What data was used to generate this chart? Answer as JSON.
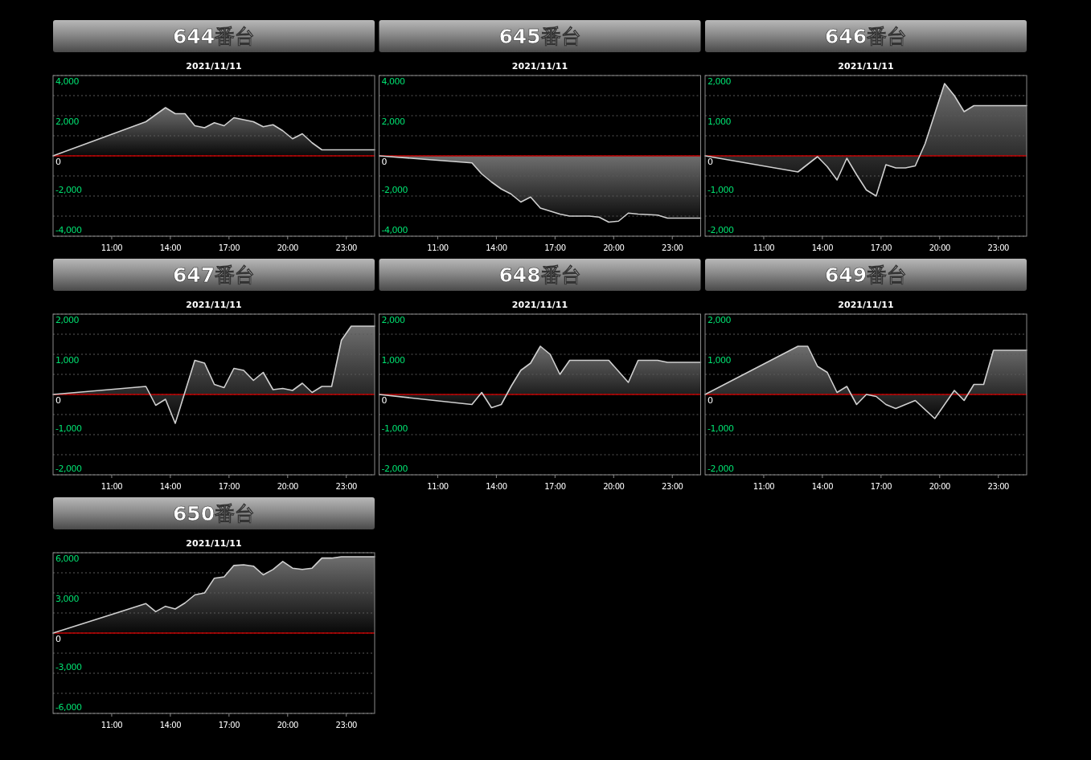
{
  "chart_data": [
    {
      "type": "area",
      "title": "644番台",
      "subtitle": "2021/11/11",
      "color": "#d0d0d0",
      "grid": "y",
      "xlim": [
        8,
        24.45
      ],
      "ylim": [
        -4000,
        4000
      ],
      "xticks": [
        {
          "value": 11,
          "label": "11:00"
        },
        {
          "value": 14,
          "label": "14:00"
        },
        {
          "value": 17,
          "label": "17:00"
        },
        {
          "value": 20,
          "label": "20:00"
        },
        {
          "value": 23,
          "label": "23:00"
        }
      ],
      "yticks": [
        {
          "value": -4000,
          "label": "-4,000"
        },
        {
          "value": -3000,
          "label": null
        },
        {
          "value": -2000,
          "label": "-2,000"
        },
        {
          "value": -1000,
          "label": null
        },
        {
          "value": 0,
          "label": "0"
        },
        {
          "value": 1000,
          "label": null
        },
        {
          "value": 2000,
          "label": "2,000"
        },
        {
          "value": 3000,
          "label": null
        },
        {
          "value": 4000,
          "label": "4,000"
        }
      ],
      "ref_lines": [
        {
          "axis": "y",
          "value": 0,
          "color": "#c00000"
        }
      ],
      "x": [
        8,
        12.75,
        13.75,
        14.25,
        14.75,
        15.25,
        15.75,
        16.25,
        16.75,
        17.25,
        17.75,
        18.25,
        18.75,
        19.25,
        19.75,
        20.25,
        20.75,
        21.25,
        21.75,
        24.45
      ],
      "values": [
        0,
        1700,
        2400,
        2100,
        2100,
        1500,
        1400,
        1650,
        1500,
        1900,
        1800,
        1700,
        1450,
        1550,
        1250,
        850,
        1100,
        650,
        300,
        300
      ]
    },
    {
      "type": "area",
      "title": "645番台",
      "subtitle": "2021/11/11",
      "color": "#d0d0d0",
      "grid": "y",
      "xlim": [
        8,
        24.45
      ],
      "ylim": [
        -4000,
        4000
      ],
      "xticks": [
        {
          "value": 11,
          "label": "11:00"
        },
        {
          "value": 14,
          "label": "14:00"
        },
        {
          "value": 17,
          "label": "17:00"
        },
        {
          "value": 20,
          "label": "20:00"
        },
        {
          "value": 23,
          "label": "23:00"
        }
      ],
      "yticks": [
        {
          "value": -4000,
          "label": "-4,000"
        },
        {
          "value": -3000,
          "label": null
        },
        {
          "value": -2000,
          "label": "-2,000"
        },
        {
          "value": -1000,
          "label": null
        },
        {
          "value": 0,
          "label": "0"
        },
        {
          "value": 1000,
          "label": null
        },
        {
          "value": 2000,
          "label": "2,000"
        },
        {
          "value": 3000,
          "label": null
        },
        {
          "value": 4000,
          "label": "4,000"
        }
      ],
      "ref_lines": [
        {
          "axis": "y",
          "value": 0,
          "color": "#c00000"
        }
      ],
      "x": [
        8,
        12.75,
        13.25,
        13.75,
        14.25,
        14.75,
        15.25,
        15.75,
        16.25,
        16.75,
        17.25,
        17.75,
        18.75,
        19.25,
        19.75,
        20.25,
        20.75,
        21.25,
        22.25,
        22.75,
        24.45
      ],
      "values": [
        0,
        -350,
        -900,
        -1300,
        -1650,
        -1900,
        -2300,
        -2050,
        -2600,
        -2750,
        -2900,
        -3000,
        -3000,
        -3050,
        -3300,
        -3250,
        -2850,
        -2900,
        -2950,
        -3100,
        -3100
      ]
    },
    {
      "type": "area",
      "title": "646番台",
      "subtitle": "2021/11/11",
      "color": "#d0d0d0",
      "grid": "y",
      "xlim": [
        8,
        24.45
      ],
      "ylim": [
        -2000,
        2000
      ],
      "xticks": [
        {
          "value": 11,
          "label": "11:00"
        },
        {
          "value": 14,
          "label": "14:00"
        },
        {
          "value": 17,
          "label": "17:00"
        },
        {
          "value": 20,
          "label": "20:00"
        },
        {
          "value": 23,
          "label": "23:00"
        }
      ],
      "yticks": [
        {
          "value": -2000,
          "label": "-2,000"
        },
        {
          "value": -1500,
          "label": null
        },
        {
          "value": -1000,
          "label": "-1,000"
        },
        {
          "value": -500,
          "label": null
        },
        {
          "value": 0,
          "label": "0"
        },
        {
          "value": 500,
          "label": null
        },
        {
          "value": 1000,
          "label": "1,000"
        },
        {
          "value": 1500,
          "label": null
        },
        {
          "value": 2000,
          "label": "2,000"
        }
      ],
      "ref_lines": [
        {
          "axis": "y",
          "value": 0,
          "color": "#c00000"
        }
      ],
      "x": [
        8,
        12.75,
        13.75,
        14.25,
        14.75,
        15.25,
        15.75,
        16.25,
        16.75,
        17.25,
        17.75,
        18.25,
        18.75,
        19.25,
        19.75,
        20.25,
        20.75,
        21.25,
        21.75,
        24.45
      ],
      "values": [
        0,
        -400,
        -20,
        -270,
        -600,
        -60,
        -470,
        -850,
        -1000,
        -220,
        -300,
        -300,
        -250,
        300,
        1050,
        1800,
        1500,
        1100,
        1250,
        1250
      ]
    },
    {
      "type": "area",
      "title": "647番台",
      "subtitle": "2021/11/11",
      "color": "#d0d0d0",
      "grid": "y",
      "xlim": [
        8,
        24.45
      ],
      "ylim": [
        -2000,
        2000
      ],
      "xticks": [
        {
          "value": 11,
          "label": "11:00"
        },
        {
          "value": 14,
          "label": "14:00"
        },
        {
          "value": 17,
          "label": "17:00"
        },
        {
          "value": 20,
          "label": "20:00"
        },
        {
          "value": 23,
          "label": "23:00"
        }
      ],
      "yticks": [
        {
          "value": -2000,
          "label": "-2,000"
        },
        {
          "value": -1500,
          "label": null
        },
        {
          "value": -1000,
          "label": "-1,000"
        },
        {
          "value": -500,
          "label": null
        },
        {
          "value": 0,
          "label": "0"
        },
        {
          "value": 500,
          "label": null
        },
        {
          "value": 1000,
          "label": "1,000"
        },
        {
          "value": 1500,
          "label": null
        },
        {
          "value": 2000,
          "label": "2,000"
        }
      ],
      "ref_lines": [
        {
          "axis": "y",
          "value": 0,
          "color": "#c00000"
        }
      ],
      "x": [
        8,
        12.75,
        13.25,
        13.75,
        14.25,
        15.25,
        15.75,
        16.25,
        16.75,
        17.25,
        17.75,
        18.25,
        18.75,
        19.25,
        19.75,
        20.25,
        20.75,
        21.25,
        21.75,
        22.25,
        22.75,
        23.25,
        24.45
      ],
      "values": [
        0,
        200,
        -270,
        -120,
        -720,
        850,
        780,
        250,
        170,
        650,
        600,
        350,
        550,
        120,
        150,
        100,
        280,
        50,
        200,
        200,
        1350,
        1700,
        1700
      ]
    },
    {
      "type": "area",
      "title": "648番台",
      "subtitle": "2021/11/11",
      "color": "#d0d0d0",
      "grid": "y",
      "xlim": [
        8,
        24.45
      ],
      "ylim": [
        -2000,
        2000
      ],
      "xticks": [
        {
          "value": 11,
          "label": "11:00"
        },
        {
          "value": 14,
          "label": "14:00"
        },
        {
          "value": 17,
          "label": "17:00"
        },
        {
          "value": 20,
          "label": "20:00"
        },
        {
          "value": 23,
          "label": "23:00"
        }
      ],
      "yticks": [
        {
          "value": -2000,
          "label": "-2,000"
        },
        {
          "value": -1500,
          "label": null
        },
        {
          "value": -1000,
          "label": "-1,000"
        },
        {
          "value": -500,
          "label": null
        },
        {
          "value": 0,
          "label": "0"
        },
        {
          "value": 500,
          "label": null
        },
        {
          "value": 1000,
          "label": "1,000"
        },
        {
          "value": 1500,
          "label": null
        },
        {
          "value": 2000,
          "label": "2,000"
        }
      ],
      "ref_lines": [
        {
          "axis": "y",
          "value": 0,
          "color": "#c00000"
        }
      ],
      "x": [
        8,
        12.75,
        13.25,
        13.75,
        14.25,
        14.75,
        15.25,
        15.75,
        16.25,
        16.75,
        17.25,
        17.75,
        19.75,
        20.75,
        21.25,
        22.25,
        22.75,
        24.45
      ],
      "values": [
        0,
        -250,
        50,
        -330,
        -250,
        200,
        600,
        780,
        1200,
        1000,
        500,
        850,
        850,
        300,
        850,
        850,
        800,
        800
      ]
    },
    {
      "type": "area",
      "title": "649番台",
      "subtitle": "2021/11/11",
      "color": "#d0d0d0",
      "grid": "y",
      "xlim": [
        8,
        24.45
      ],
      "ylim": [
        -2000,
        2000
      ],
      "xticks": [
        {
          "value": 11,
          "label": "11:00"
        },
        {
          "value": 14,
          "label": "14:00"
        },
        {
          "value": 17,
          "label": "17:00"
        },
        {
          "value": 20,
          "label": "20:00"
        },
        {
          "value": 23,
          "label": "23:00"
        }
      ],
      "yticks": [
        {
          "value": -2000,
          "label": "-2,000"
        },
        {
          "value": -1500,
          "label": null
        },
        {
          "value": -1000,
          "label": "-1,000"
        },
        {
          "value": -500,
          "label": null
        },
        {
          "value": 0,
          "label": "0"
        },
        {
          "value": 500,
          "label": null
        },
        {
          "value": 1000,
          "label": "1,000"
        },
        {
          "value": 1500,
          "label": null
        },
        {
          "value": 2000,
          "label": "2,000"
        }
      ],
      "ref_lines": [
        {
          "axis": "y",
          "value": 0,
          "color": "#c00000"
        }
      ],
      "x": [
        8,
        12.75,
        13.25,
        13.75,
        14.25,
        14.75,
        15.25,
        15.75,
        16.25,
        16.75,
        17.25,
        17.75,
        18.25,
        18.75,
        19.75,
        20.75,
        21.25,
        21.75,
        22.25,
        22.75,
        24.45
      ],
      "values": [
        0,
        1200,
        1200,
        700,
        550,
        50,
        200,
        -250,
        0,
        -50,
        -250,
        -350,
        -250,
        -150,
        -600,
        100,
        -150,
        250,
        250,
        1100,
        1100
      ]
    },
    {
      "type": "area",
      "title": "650番台",
      "subtitle": "2021/11/11",
      "color": "#d0d0d0",
      "grid": "y",
      "xlim": [
        8,
        24.45
      ],
      "ylim": [
        -6000,
        6000
      ],
      "xticks": [
        {
          "value": 11,
          "label": "11:00"
        },
        {
          "value": 14,
          "label": "14:00"
        },
        {
          "value": 17,
          "label": "17:00"
        },
        {
          "value": 20,
          "label": "20:00"
        },
        {
          "value": 23,
          "label": "23:00"
        }
      ],
      "yticks": [
        {
          "value": -6000,
          "label": "-6,000"
        },
        {
          "value": -4500,
          "label": null
        },
        {
          "value": -3000,
          "label": "-3,000"
        },
        {
          "value": -1500,
          "label": null
        },
        {
          "value": 0,
          "label": "0"
        },
        {
          "value": 1500,
          "label": null
        },
        {
          "value": 3000,
          "label": "3,000"
        },
        {
          "value": 4500,
          "label": null
        },
        {
          "value": 6000,
          "label": "6,000"
        }
      ],
      "ref_lines": [
        {
          "axis": "y",
          "value": 0,
          "color": "#c00000"
        }
      ],
      "x": [
        8,
        12.75,
        13.25,
        13.75,
        14.25,
        14.75,
        15.25,
        15.75,
        16.25,
        16.75,
        17.25,
        17.75,
        18.25,
        18.75,
        19.25,
        19.75,
        20.25,
        20.75,
        21.25,
        21.75,
        22.25,
        22.75,
        24.45
      ],
      "values": [
        0,
        2200,
        1600,
        2000,
        1800,
        2250,
        2850,
        3000,
        4100,
        4200,
        5050,
        5100,
        5000,
        4350,
        4750,
        5350,
        4850,
        4750,
        4850,
        5600,
        5600,
        5700,
        5700
      ]
    }
  ]
}
